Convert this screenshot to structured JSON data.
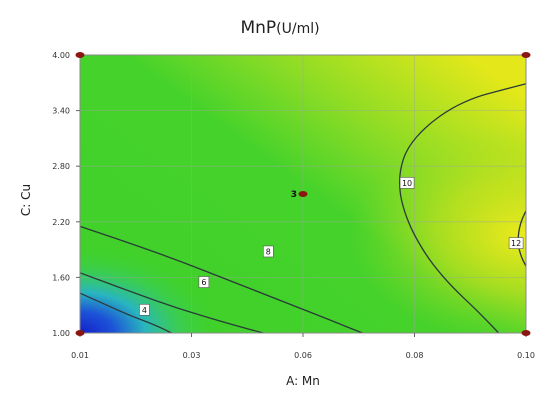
{
  "chart_data": {
    "type": "contour",
    "title": "MnP",
    "title_unit": "(U/ml)",
    "xlabel": "A: Mn",
    "ylabel": "C: Cu",
    "xlim": [
      0.01,
      0.1
    ],
    "ylim": [
      1.0,
      4.0
    ],
    "x_ticks": [
      {
        "value": 0.01,
        "label": "0.01"
      },
      {
        "value": 0.0325,
        "label": "0.03"
      },
      {
        "value": 0.055,
        "label": "0.06"
      },
      {
        "value": 0.0775,
        "label": "0.08"
      },
      {
        "value": 0.1,
        "label": "0.10"
      }
    ],
    "y_ticks": [
      {
        "value": 1.0,
        "label": "1.00"
      },
      {
        "value": 1.6,
        "label": "1.60"
      },
      {
        "value": 2.2,
        "label": "2.20"
      },
      {
        "value": 2.8,
        "label": "2.80"
      },
      {
        "value": 3.4,
        "label": "3.40"
      },
      {
        "value": 4.0,
        "label": "4.00"
      }
    ],
    "contours": [
      {
        "level": "4",
        "label_at": [
          0.023,
          1.25
        ],
        "points": [
          [
            0.01,
            1.43
          ],
          [
            0.015,
            1.31
          ],
          [
            0.02,
            1.19
          ],
          [
            0.025,
            1.09
          ],
          [
            0.0285,
            1.0
          ]
        ]
      },
      {
        "level": "6",
        "label_at": [
          0.035,
          1.55
        ],
        "points": [
          [
            0.01,
            1.65
          ],
          [
            0.02,
            1.45
          ],
          [
            0.03,
            1.26
          ],
          [
            0.04,
            1.1
          ],
          [
            0.047,
            1.0
          ]
        ]
      },
      {
        "level": "8",
        "label_at": [
          0.048,
          1.88
        ],
        "points": [
          [
            0.01,
            2.15
          ],
          [
            0.02,
            1.97
          ],
          [
            0.03,
            1.78
          ],
          [
            0.04,
            1.57
          ],
          [
            0.05,
            1.36
          ],
          [
            0.06,
            1.15
          ],
          [
            0.067,
            1.0
          ]
        ]
      },
      {
        "level": "10",
        "label_at": [
          0.076,
          2.62
        ],
        "points": [
          [
            0.1,
            3.69
          ],
          [
            0.095,
            3.62
          ],
          [
            0.09,
            3.55
          ],
          [
            0.085,
            3.43
          ],
          [
            0.08,
            3.24
          ],
          [
            0.076,
            3.0
          ],
          [
            0.0745,
            2.75
          ],
          [
            0.0745,
            2.5
          ],
          [
            0.0758,
            2.25
          ],
          [
            0.078,
            2.0
          ],
          [
            0.081,
            1.75
          ],
          [
            0.085,
            1.5
          ],
          [
            0.09,
            1.25
          ],
          [
            0.0945,
            1.0
          ]
        ]
      },
      {
        "level": "12",
        "label_at": [
          0.098,
          1.97
        ],
        "points": [
          [
            0.1,
            2.32
          ],
          [
            0.0988,
            2.18
          ],
          [
            0.0983,
            2.0
          ],
          [
            0.0988,
            1.85
          ],
          [
            0.1,
            1.72
          ]
        ]
      }
    ],
    "design_points": [
      {
        "x": 0.01,
        "y": 1.0,
        "label": ""
      },
      {
        "x": 0.01,
        "y": 4.0,
        "label": ""
      },
      {
        "x": 0.1,
        "y": 1.0,
        "label": ""
      },
      {
        "x": 0.1,
        "y": 4.0,
        "label": ""
      },
      {
        "x": 0.055,
        "y": 2.5,
        "label": "3"
      }
    ],
    "colors": {
      "surface_low": "#1a24c8",
      "surface_mid": "#3fd02a",
      "surface_high": "#e4e81a",
      "contour_line": "#2b3a3a",
      "design_point": "#8b1510"
    }
  }
}
